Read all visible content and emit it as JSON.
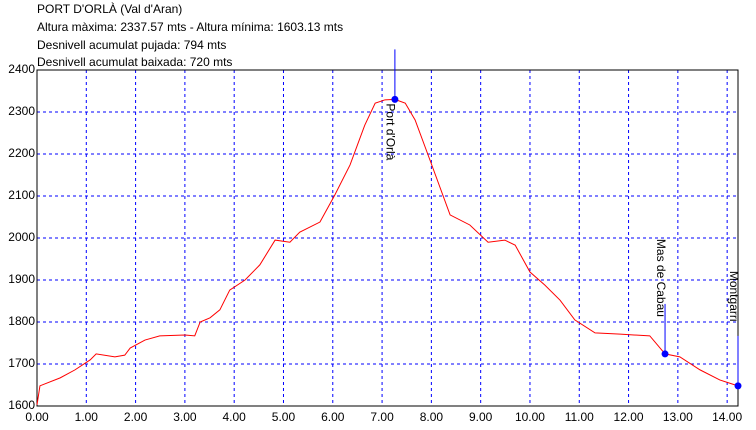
{
  "chart_data": {
    "type": "line",
    "title": "PORT D'ORLÀ (Val d'Aran)",
    "subtitle": [
      "Altura màxima: 2337.57 mts - Altura mínima: 1603.13 mts",
      "Desnivell acumulat pujada: 794 mts",
      "Desnivell acumulat baixada: 720 mts"
    ],
    "x": [
      0,
      0.06,
      0.47,
      0.77,
      1.08,
      1.2,
      1.58,
      1.78,
      1.89,
      2.19,
      2.49,
      3.0,
      3.2,
      3.31,
      3.51,
      3.71,
      3.91,
      4.22,
      4.52,
      4.83,
      5.13,
      5.33,
      5.74,
      6.04,
      6.35,
      6.65,
      6.86,
      7.06,
      7.26,
      7.47,
      7.67,
      7.97,
      8.38,
      8.78,
      9.15,
      9.49,
      9.7,
      10.0,
      10.3,
      10.61,
      10.91,
      11.32,
      11.83,
      12.43,
      12.74,
      13.04,
      13.45,
      13.85,
      14.22
    ],
    "series": [
      {
        "color": "#ff0000",
        "values": [
          1603,
          1648,
          1667,
          1686,
          1710,
          1724,
          1717,
          1721,
          1738,
          1757,
          1767,
          1769,
          1767,
          1800,
          1810,
          1829,
          1876,
          1900,
          1936,
          1995,
          1990,
          2014,
          2038,
          2102,
          2174,
          2269,
          2321,
          2329,
          2330,
          2321,
          2281,
          2186,
          2055,
          2031,
          1990,
          1995,
          1983,
          1919,
          1888,
          1852,
          1805,
          1774,
          1771,
          1767,
          1724,
          1717,
          1686,
          1662,
          1648
        ]
      }
    ],
    "waypoints": [
      {
        "name": "Port d'Orlà",
        "x": 7.26,
        "y": 2330
      },
      {
        "name": "Mas de Cabau",
        "x": 12.74,
        "y": 1724
      },
      {
        "name": "Montgarri",
        "x": 14.22,
        "y": 1648
      }
    ],
    "waypoint_color": "#0000ff",
    "xlim": [
      0,
      14.22
    ],
    "ylim": [
      1600,
      2400
    ],
    "xticks": [
      {
        "value": 0,
        "label": "0.00"
      },
      {
        "value": 1,
        "label": "1.00"
      },
      {
        "value": 2,
        "label": "2.00"
      },
      {
        "value": 3,
        "label": "3.00"
      },
      {
        "value": 4,
        "label": "4.00"
      },
      {
        "value": 5,
        "label": "5.00"
      },
      {
        "value": 6,
        "label": "6.00"
      },
      {
        "value": 7,
        "label": "7.00"
      },
      {
        "value": 8,
        "label": "8.00"
      },
      {
        "value": 9,
        "label": "9.00"
      },
      {
        "value": 10,
        "label": "10.00"
      },
      {
        "value": 11,
        "label": "11.00"
      },
      {
        "value": 12,
        "label": "12.00"
      },
      {
        "value": 13,
        "label": "13.00"
      },
      {
        "value": 14,
        "label": "14.00"
      }
    ],
    "yticks": [
      1600,
      1700,
      1800,
      1900,
      2000,
      2100,
      2200,
      2300,
      2400
    ],
    "grid": true
  }
}
